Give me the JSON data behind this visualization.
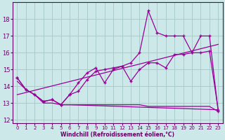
{
  "bg_color": "#cce8e8",
  "grid_color": "#aacccc",
  "line_color": "#990099",
  "marker_color": "#990099",
  "xlabel": "Windchill (Refroidissement éolien,°C)",
  "xlabel_color": "#660066",
  "tick_color": "#660066",
  "ylim": [
    11.8,
    19.0
  ],
  "xlim": [
    -0.5,
    23.5
  ],
  "yticks": [
    12,
    13,
    14,
    15,
    16,
    17,
    18
  ],
  "xticks": [
    0,
    1,
    2,
    3,
    4,
    5,
    6,
    7,
    8,
    9,
    10,
    11,
    12,
    13,
    14,
    15,
    16,
    17,
    18,
    19,
    20,
    21,
    22,
    23
  ],
  "series_spike_x": [
    0,
    1,
    2,
    3,
    4,
    5,
    6,
    7,
    8,
    9,
    10,
    11,
    12,
    13,
    14,
    15,
    16,
    17,
    18,
    19,
    20,
    21,
    22,
    23
  ],
  "series_spike_y": [
    14.5,
    13.8,
    13.5,
    13.1,
    13.2,
    12.9,
    13.5,
    14.2,
    14.8,
    15.1,
    14.2,
    15.0,
    15.2,
    15.4,
    16.0,
    18.5,
    17.2,
    17.0,
    17.0,
    17.0,
    16.0,
    17.0,
    17.0,
    12.5
  ],
  "series_mid_x": [
    0,
    1,
    2,
    3,
    4,
    5,
    6,
    7,
    8,
    9,
    10,
    11,
    12,
    13,
    14,
    15,
    16,
    17,
    18,
    19,
    20,
    21,
    22,
    23
  ],
  "series_mid_y": [
    14.5,
    13.8,
    13.5,
    13.1,
    13.2,
    12.9,
    13.5,
    13.7,
    14.4,
    14.9,
    15.0,
    15.1,
    15.2,
    14.3,
    15.0,
    15.4,
    15.4,
    15.1,
    15.9,
    15.9,
    16.0,
    16.0,
    16.1,
    12.6
  ],
  "series_bot_x": [
    0,
    1,
    2,
    3,
    4,
    5,
    6,
    23
  ],
  "series_bot_y": [
    14.3,
    13.8,
    13.5,
    13.0,
    13.0,
    12.9,
    12.9,
    12.6
  ],
  "series_flat_x": [
    5,
    6,
    7,
    8,
    9,
    10,
    11,
    12,
    13,
    14,
    15,
    16,
    17,
    18,
    19,
    20,
    21,
    22,
    23
  ],
  "series_flat_y": [
    12.9,
    12.9,
    12.9,
    12.9,
    12.9,
    12.9,
    12.9,
    12.9,
    12.9,
    12.9,
    12.8,
    12.8,
    12.8,
    12.8,
    12.8,
    12.8,
    12.8,
    12.8,
    12.5
  ],
  "trend_x": [
    0,
    23
  ],
  "trend_y": [
    13.5,
    16.5
  ]
}
